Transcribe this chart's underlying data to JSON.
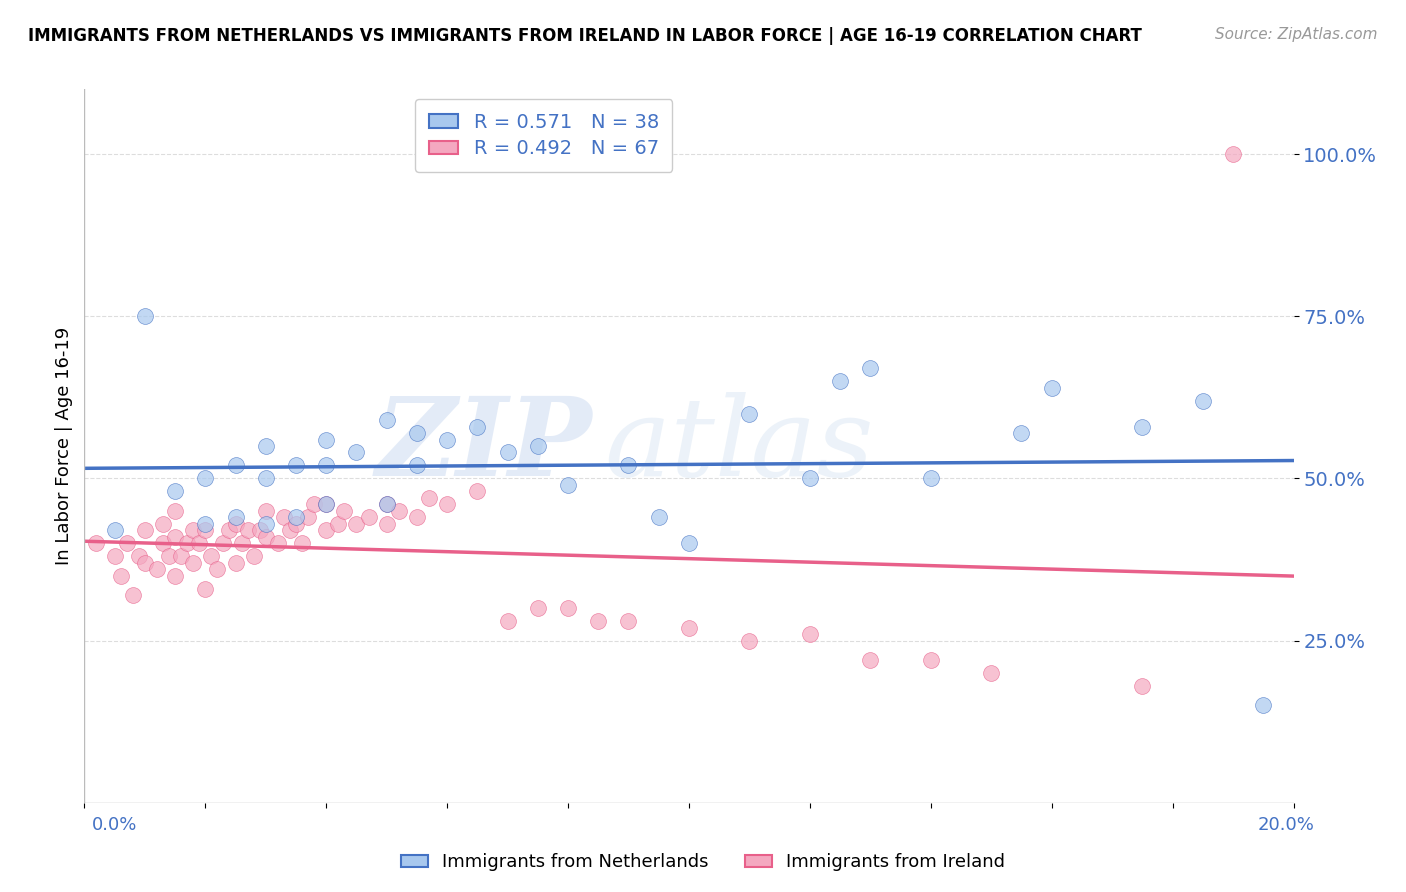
{
  "title": "IMMIGRANTS FROM NETHERLANDS VS IMMIGRANTS FROM IRELAND IN LABOR FORCE | AGE 16-19 CORRELATION CHART",
  "source": "Source: ZipAtlas.com",
  "ylabel": "In Labor Force | Age 16-19",
  "ylabel_ticks": [
    "25.0%",
    "50.0%",
    "75.0%",
    "100.0%"
  ],
  "ylabel_tick_vals": [
    0.25,
    0.5,
    0.75,
    1.0
  ],
  "xlim": [
    0.0,
    0.2
  ],
  "ylim": [
    0.0,
    1.1
  ],
  "R_netherlands": 0.571,
  "N_netherlands": 38,
  "R_ireland": 0.492,
  "N_ireland": 67,
  "color_netherlands": "#A8C8EE",
  "color_ireland": "#F4A8C0",
  "line_color_netherlands": "#4472C4",
  "line_color_ireland": "#E8608A",
  "netherlands_x": [
    0.005,
    0.01,
    0.015,
    0.02,
    0.02,
    0.025,
    0.025,
    0.03,
    0.03,
    0.03,
    0.035,
    0.035,
    0.04,
    0.04,
    0.04,
    0.045,
    0.05,
    0.05,
    0.055,
    0.055,
    0.06,
    0.065,
    0.07,
    0.075,
    0.08,
    0.09,
    0.095,
    0.1,
    0.11,
    0.12,
    0.125,
    0.13,
    0.14,
    0.155,
    0.16,
    0.175,
    0.185,
    0.195
  ],
  "netherlands_y": [
    0.42,
    0.75,
    0.48,
    0.43,
    0.5,
    0.44,
    0.52,
    0.43,
    0.5,
    0.55,
    0.44,
    0.52,
    0.46,
    0.52,
    0.56,
    0.54,
    0.46,
    0.59,
    0.52,
    0.57,
    0.56,
    0.58,
    0.54,
    0.55,
    0.49,
    0.52,
    0.44,
    0.4,
    0.6,
    0.5,
    0.65,
    0.67,
    0.5,
    0.57,
    0.64,
    0.58,
    0.62,
    0.15
  ],
  "ireland_x": [
    0.002,
    0.005,
    0.006,
    0.007,
    0.008,
    0.009,
    0.01,
    0.01,
    0.012,
    0.013,
    0.013,
    0.014,
    0.015,
    0.015,
    0.015,
    0.016,
    0.017,
    0.018,
    0.018,
    0.019,
    0.02,
    0.02,
    0.021,
    0.022,
    0.023,
    0.024,
    0.025,
    0.025,
    0.026,
    0.027,
    0.028,
    0.029,
    0.03,
    0.03,
    0.032,
    0.033,
    0.034,
    0.035,
    0.036,
    0.037,
    0.038,
    0.04,
    0.04,
    0.042,
    0.043,
    0.045,
    0.047,
    0.05,
    0.05,
    0.052,
    0.055,
    0.057,
    0.06,
    0.065,
    0.07,
    0.075,
    0.08,
    0.085,
    0.09,
    0.1,
    0.11,
    0.12,
    0.13,
    0.14,
    0.15,
    0.175,
    0.19
  ],
  "ireland_y": [
    0.4,
    0.38,
    0.35,
    0.4,
    0.32,
    0.38,
    0.37,
    0.42,
    0.36,
    0.4,
    0.43,
    0.38,
    0.35,
    0.41,
    0.45,
    0.38,
    0.4,
    0.37,
    0.42,
    0.4,
    0.33,
    0.42,
    0.38,
    0.36,
    0.4,
    0.42,
    0.37,
    0.43,
    0.4,
    0.42,
    0.38,
    0.42,
    0.41,
    0.45,
    0.4,
    0.44,
    0.42,
    0.43,
    0.4,
    0.44,
    0.46,
    0.42,
    0.46,
    0.43,
    0.45,
    0.43,
    0.44,
    0.43,
    0.46,
    0.45,
    0.44,
    0.47,
    0.46,
    0.48,
    0.28,
    0.3,
    0.3,
    0.28,
    0.28,
    0.27,
    0.25,
    0.26,
    0.22,
    0.22,
    0.2,
    0.18,
    1.0
  ],
  "watermark_zip": "ZIP",
  "watermark_atlas": "atlas",
  "background_color": "#FFFFFF",
  "grid_color": "#DDDDDD"
}
